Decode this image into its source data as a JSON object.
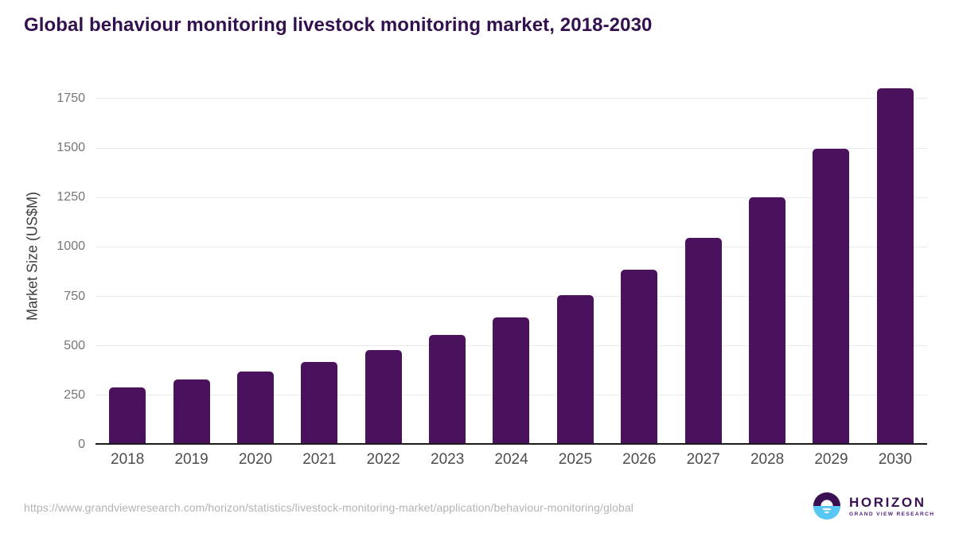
{
  "title": "Global behaviour monitoring livestock monitoring market, 2018-2030",
  "chart_data": {
    "type": "bar",
    "title": "Global behaviour monitoring livestock monitoring market, 2018-2030",
    "categories": [
      "2018",
      "2019",
      "2020",
      "2021",
      "2022",
      "2023",
      "2024",
      "2025",
      "2026",
      "2027",
      "2028",
      "2029",
      "2030"
    ],
    "values": [
      290,
      330,
      370,
      420,
      480,
      555,
      645,
      755,
      885,
      1045,
      1250,
      1495,
      1800
    ],
    "xlabel": "",
    "ylabel": "Market Size (US$M)",
    "ylim": [
      0,
      1850
    ],
    "yticks": [
      0,
      250,
      500,
      750,
      1000,
      1250,
      1500,
      1750
    ],
    "grid": true,
    "legend": "none",
    "bar_color": "#4a115c"
  },
  "colors": {
    "title": "#33114e",
    "bar": "#4a115c",
    "gridline": "#ebebeb",
    "axis_line": "#1c1c1c",
    "ytick_label": "#757575",
    "xtick_label": "#4d4d4d",
    "url_text": "#b3b3b3",
    "logo_dark_purple": "#3b1053",
    "logo_light_blue": "#58c7f3"
  },
  "footer": {
    "source_url": "https://www.grandviewresearch.com/horizon/statistics/livestock-monitoring-market/application/behaviour-monitoring/global",
    "logo": {
      "name": "HORIZON",
      "tagline": "GRAND VIEW RESEARCH"
    }
  }
}
